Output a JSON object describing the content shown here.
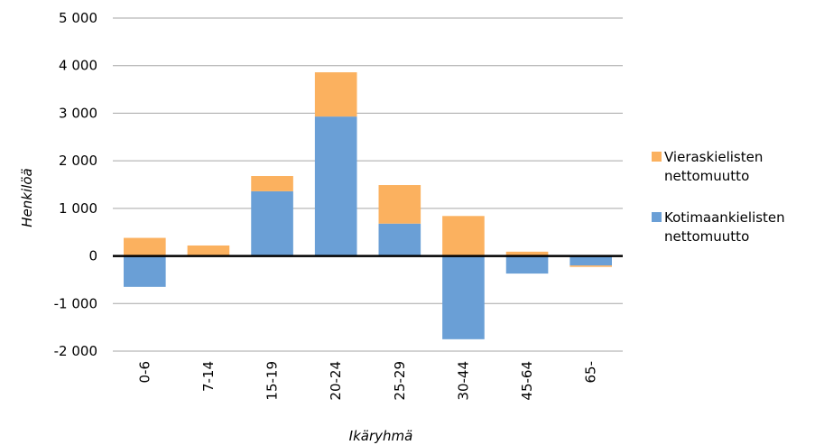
{
  "chart_data": {
    "type": "bar",
    "stacked": true,
    "xlabel": "Ikäryhmä",
    "ylabel": "Henkilöä",
    "ylim": [
      -2000,
      5000
    ],
    "yticks": [
      -2000,
      -1000,
      0,
      1000,
      2000,
      3000,
      4000,
      5000
    ],
    "ytick_labels": [
      "-2 000",
      "-1 000",
      "0",
      "1 000",
      "2 000",
      "3 000",
      "4 000",
      "5 000"
    ],
    "grid": true,
    "legend_position": "right",
    "categories": [
      "0-6",
      "7-14",
      "15-19",
      "20-24",
      "25-29",
      "30-44",
      "45-64",
      "65-"
    ],
    "series": [
      {
        "name": "Kotimaankielisten nettomuutto",
        "legend_lines": [
          "Kotimaankielisten",
          "nettomuutto"
        ],
        "color": "#6a9fd6",
        "values": [
          -650,
          20,
          1360,
          2930,
          680,
          -1750,
          -370,
          -200
        ]
      },
      {
        "name": "Vieraskielisten nettomuutto",
        "legend_lines": [
          "Vieraskielisten",
          "nettomuutto"
        ],
        "color": "#fbb15f",
        "values": [
          380,
          200,
          320,
          930,
          810,
          840,
          90,
          -30
        ]
      }
    ]
  }
}
